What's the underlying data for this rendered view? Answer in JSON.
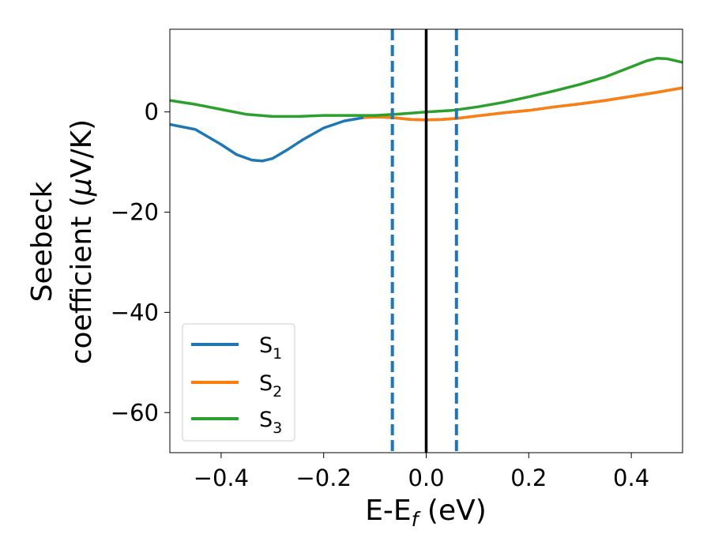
{
  "chart_data": {
    "type": "line",
    "title": "",
    "xlabel": "E-E",
    "xlabel_sub": "f",
    "xlabel_unit": " (eV)",
    "ylabel_line1": "Seebeck",
    "ylabel_line2": "coefficient  (",
    "ylabel_mu": "μ",
    "ylabel_unit": "V/K)",
    "xlim": [
      -0.5,
      0.5
    ],
    "ylim": [
      -68,
      16.5
    ],
    "xticks": [
      -0.4,
      -0.2,
      0.0,
      0.2,
      0.4
    ],
    "xtick_labels": [
      "−0.4",
      "−0.2",
      "0.0",
      "0.2",
      "0.4"
    ],
    "yticks": [
      0,
      -20,
      -40,
      -60
    ],
    "ytick_labels": [
      "0",
      "−20",
      "−40",
      "−60"
    ],
    "grid": false,
    "legend_position": "lower-left",
    "vlines": [
      {
        "x": -0.066,
        "style": "dashed",
        "color": "#1f77b4"
      },
      {
        "x": 0.059,
        "style": "dashed",
        "color": "#1f77b4"
      },
      {
        "x": 0.0,
        "style": "solid",
        "color": "#000000"
      }
    ],
    "series": [
      {
        "name": "S",
        "sub": "1",
        "color": "#1f77b4",
        "x": [
          -0.5,
          -0.45,
          -0.4,
          -0.37,
          -0.34,
          -0.32,
          -0.3,
          -0.27,
          -0.24,
          -0.2,
          -0.16,
          -0.12,
          -0.09,
          -0.06,
          -0.03,
          0.0,
          0.03,
          0.06,
          0.1,
          0.15,
          0.2,
          0.25,
          0.3,
          0.35,
          0.4,
          0.45,
          0.5
        ],
        "y": [
          -2.5,
          -3.5,
          -6.5,
          -8.5,
          -9.6,
          -9.8,
          -9.3,
          -7.5,
          -5.5,
          -3.2,
          -1.8,
          -1.1,
          -1.0,
          -1.2,
          -1.5,
          -1.6,
          -1.5,
          -1.3,
          -0.8,
          -0.2,
          0.3,
          1.0,
          1.6,
          2.3,
          3.1,
          3.9,
          4.8
        ]
      },
      {
        "name": "S",
        "sub": "2",
        "color": "#ff7f0e",
        "x": [
          -0.12,
          -0.09,
          -0.06,
          -0.03,
          0.0,
          0.03,
          0.06,
          0.1,
          0.15,
          0.2,
          0.25,
          0.3,
          0.35,
          0.4,
          0.45,
          0.5
        ],
        "y": [
          -1.1,
          -1.0,
          -1.2,
          -1.5,
          -1.6,
          -1.5,
          -1.3,
          -0.8,
          -0.2,
          0.3,
          1.0,
          1.6,
          2.3,
          3.1,
          3.9,
          4.8
        ]
      },
      {
        "name": "S",
        "sub": "3",
        "color": "#2ca02c",
        "x": [
          -0.5,
          -0.45,
          -0.4,
          -0.35,
          -0.3,
          -0.25,
          -0.2,
          -0.15,
          -0.1,
          -0.05,
          0.0,
          0.05,
          0.1,
          0.15,
          0.2,
          0.25,
          0.3,
          0.35,
          0.4,
          0.43,
          0.45,
          0.47,
          0.5
        ],
        "y": [
          2.3,
          1.5,
          0.5,
          -0.5,
          -0.9,
          -0.9,
          -0.7,
          -0.7,
          -0.7,
          -0.4,
          0.0,
          0.3,
          1.0,
          1.9,
          3.0,
          4.2,
          5.5,
          7.0,
          9.0,
          10.2,
          10.7,
          10.6,
          9.9
        ]
      }
    ]
  }
}
